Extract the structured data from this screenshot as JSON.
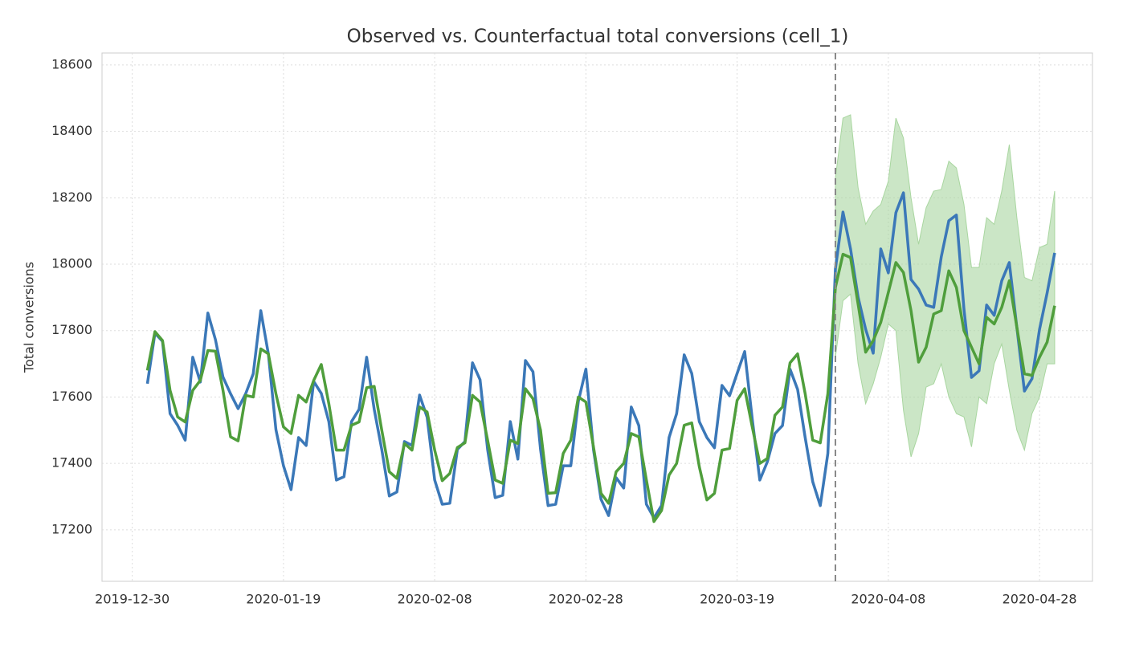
{
  "chart_data": {
    "type": "line",
    "title": "Observed vs. Counterfactual total conversions (cell_1)",
    "ylabel": "Total conversions",
    "x": [
      "2020-01-01",
      "2020-01-02",
      "2020-01-03",
      "2020-01-04",
      "2020-01-05",
      "2020-01-06",
      "2020-01-07",
      "2020-01-08",
      "2020-01-09",
      "2020-01-10",
      "2020-01-11",
      "2020-01-12",
      "2020-01-13",
      "2020-01-14",
      "2020-01-15",
      "2020-01-16",
      "2020-01-17",
      "2020-01-18",
      "2020-01-19",
      "2020-01-20",
      "2020-01-21",
      "2020-01-22",
      "2020-01-23",
      "2020-01-24",
      "2020-01-25",
      "2020-01-26",
      "2020-01-27",
      "2020-01-28",
      "2020-01-29",
      "2020-01-30",
      "2020-01-31",
      "2020-02-01",
      "2020-02-02",
      "2020-02-03",
      "2020-02-04",
      "2020-02-05",
      "2020-02-06",
      "2020-02-07",
      "2020-02-08",
      "2020-02-09",
      "2020-02-10",
      "2020-02-11",
      "2020-02-12",
      "2020-02-13",
      "2020-02-14",
      "2020-02-15",
      "2020-02-16",
      "2020-02-17",
      "2020-02-18",
      "2020-02-19",
      "2020-02-20",
      "2020-02-21",
      "2020-02-22",
      "2020-02-23",
      "2020-02-24",
      "2020-02-25",
      "2020-02-26",
      "2020-02-27",
      "2020-02-28",
      "2020-02-29",
      "2020-03-01",
      "2020-03-02",
      "2020-03-03",
      "2020-03-04",
      "2020-03-05",
      "2020-03-06",
      "2020-03-07",
      "2020-03-08",
      "2020-03-09",
      "2020-03-10",
      "2020-03-11",
      "2020-03-12",
      "2020-03-13",
      "2020-03-14",
      "2020-03-15",
      "2020-03-16",
      "2020-03-17",
      "2020-03-18",
      "2020-03-19",
      "2020-03-20",
      "2020-03-21",
      "2020-03-22",
      "2020-03-23",
      "2020-03-24",
      "2020-03-25",
      "2020-03-26",
      "2020-03-27",
      "2020-03-28",
      "2020-03-29",
      "2020-03-30",
      "2020-03-31",
      "2020-04-01",
      "2020-04-02",
      "2020-04-03",
      "2020-04-04",
      "2020-04-05",
      "2020-04-06",
      "2020-04-07",
      "2020-04-08",
      "2020-04-09",
      "2020-04-10",
      "2020-04-11",
      "2020-04-12",
      "2020-04-13",
      "2020-04-14",
      "2020-04-15",
      "2020-04-16",
      "2020-04-17",
      "2020-04-18",
      "2020-04-19",
      "2020-04-20",
      "2020-04-21",
      "2020-04-22",
      "2020-04-23",
      "2020-04-24",
      "2020-04-25",
      "2020-04-26",
      "2020-04-27",
      "2020-04-28",
      "2020-04-29",
      "2020-04-30"
    ],
    "series": [
      {
        "color": "#3b78b8",
        "values": [
          17640,
          17792,
          17768,
          17550,
          17515,
          17470,
          17720,
          17645,
          17853,
          17773,
          17660,
          17610,
          17565,
          17610,
          17670,
          17860,
          17730,
          17502,
          17393,
          17321,
          17478,
          17454,
          17647,
          17611,
          17526,
          17350,
          17360,
          17526,
          17563,
          17720,
          17563,
          17442,
          17302,
          17314,
          17466,
          17454,
          17606,
          17539,
          17350,
          17277,
          17280,
          17442,
          17466,
          17703,
          17652,
          17442,
          17297,
          17304,
          17526,
          17413,
          17710,
          17676,
          17442,
          17273,
          17277,
          17393,
          17393,
          17587,
          17684,
          17442,
          17292,
          17243,
          17357,
          17326,
          17570,
          17514,
          17277,
          17236,
          17273,
          17478,
          17550,
          17727,
          17671,
          17526,
          17478,
          17447,
          17635,
          17604,
          17671,
          17737,
          17534,
          17350,
          17405,
          17490,
          17514,
          17684,
          17623,
          17478,
          17345,
          17273,
          17430,
          17986,
          18157,
          18046,
          17901,
          17804,
          17732,
          18046,
          17974,
          18155,
          18215,
          17954,
          17925,
          17877,
          17870,
          18022,
          18131,
          18148,
          17865,
          17659,
          17679,
          17877,
          17846,
          17950,
          18005,
          17809,
          17618,
          17655,
          17804,
          17913,
          18034
        ]
      },
      {
        "color": "#4f9e3c",
        "values": [
          17680,
          17797,
          17770,
          17620,
          17540,
          17525,
          17620,
          17650,
          17740,
          17738,
          17620,
          17480,
          17468,
          17605,
          17600,
          17745,
          17730,
          17610,
          17510,
          17490,
          17605,
          17585,
          17650,
          17698,
          17580,
          17440,
          17440,
          17515,
          17525,
          17628,
          17632,
          17500,
          17375,
          17355,
          17460,
          17440,
          17570,
          17555,
          17440,
          17348,
          17370,
          17448,
          17462,
          17605,
          17585,
          17470,
          17350,
          17340,
          17470,
          17460,
          17625,
          17595,
          17500,
          17310,
          17312,
          17430,
          17470,
          17600,
          17585,
          17450,
          17310,
          17280,
          17375,
          17400,
          17490,
          17480,
          17350,
          17225,
          17258,
          17365,
          17400,
          17515,
          17522,
          17390,
          17290,
          17310,
          17440,
          17445,
          17590,
          17625,
          17510,
          17400,
          17415,
          17545,
          17570,
          17703,
          17730,
          17610,
          17470,
          17462,
          17610,
          17930,
          18030,
          18020,
          17880,
          17735,
          17770,
          17825,
          17915,
          18005,
          17975,
          17860,
          17705,
          17750,
          17850,
          17860,
          17980,
          17930,
          17800,
          17750,
          17700,
          17840,
          17820,
          17870,
          17950,
          17810,
          17670,
          17665,
          17720,
          17765,
          17875
        ]
      }
    ],
    "band": {
      "color": "#a9d6a0",
      "upper": [
        null,
        null,
        null,
        null,
        null,
        null,
        null,
        null,
        null,
        null,
        null,
        null,
        null,
        null,
        null,
        null,
        null,
        null,
        null,
        null,
        null,
        null,
        null,
        null,
        null,
        null,
        null,
        null,
        null,
        null,
        null,
        null,
        null,
        null,
        null,
        null,
        null,
        null,
        null,
        null,
        null,
        null,
        null,
        null,
        null,
        null,
        null,
        null,
        null,
        null,
        null,
        null,
        null,
        null,
        null,
        null,
        null,
        null,
        null,
        null,
        null,
        null,
        null,
        null,
        null,
        null,
        null,
        null,
        null,
        null,
        null,
        null,
        null,
        null,
        null,
        null,
        null,
        null,
        null,
        null,
        null,
        null,
        null,
        null,
        null,
        null,
        null,
        null,
        null,
        null,
        null,
        18260,
        18440,
        18450,
        18230,
        18120,
        18160,
        18180,
        18250,
        18440,
        18380,
        18200,
        18060,
        18170,
        18220,
        18225,
        18310,
        18290,
        18180,
        17990,
        17990,
        18140,
        18120,
        18220,
        18360,
        18140,
        17960,
        17950,
        18050,
        18060,
        18220
      ],
      "lower": [
        null,
        null,
        null,
        null,
        null,
        null,
        null,
        null,
        null,
        null,
        null,
        null,
        null,
        null,
        null,
        null,
        null,
        null,
        null,
        null,
        null,
        null,
        null,
        null,
        null,
        null,
        null,
        null,
        null,
        null,
        null,
        null,
        null,
        null,
        null,
        null,
        null,
        null,
        null,
        null,
        null,
        null,
        null,
        null,
        null,
        null,
        null,
        null,
        null,
        null,
        null,
        null,
        null,
        null,
        null,
        null,
        null,
        null,
        null,
        null,
        null,
        null,
        null,
        null,
        null,
        null,
        null,
        null,
        null,
        null,
        null,
        null,
        null,
        null,
        null,
        null,
        null,
        null,
        null,
        null,
        null,
        null,
        null,
        null,
        null,
        null,
        null,
        null,
        null,
        null,
        null,
        17720,
        17890,
        17910,
        17700,
        17580,
        17640,
        17720,
        17820,
        17800,
        17560,
        17420,
        17490,
        17630,
        17640,
        17700,
        17600,
        17550,
        17540,
        17450,
        17600,
        17580,
        17700,
        17760,
        17620,
        17500,
        17440,
        17550,
        17600,
        17700,
        17700
      ]
    },
    "event_line": "2020-04-01",
    "xlim": [
      "2019-12-26",
      "2020-05-05"
    ],
    "xticks": [
      "2019-12-30",
      "2020-01-19",
      "2020-02-08",
      "2020-02-28",
      "2020-03-19",
      "2020-04-08",
      "2020-04-28"
    ],
    "ylim": [
      17045,
      18636
    ],
    "yticks": [
      17200,
      17400,
      17600,
      17800,
      18000,
      18200,
      18400,
      18600
    ],
    "grid": true
  }
}
